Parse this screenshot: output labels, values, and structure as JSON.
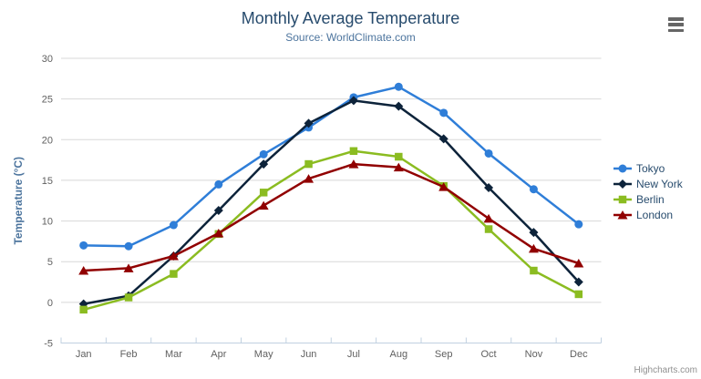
{
  "credits": "Highcharts.com",
  "icons": {
    "export_button": "hamburger-icon"
  },
  "chart_data": {
    "type": "line",
    "title": "Monthly Average Temperature",
    "subtitle": "Source: WorldClimate.com",
    "categories": [
      "Jan",
      "Feb",
      "Mar",
      "Apr",
      "May",
      "Jun",
      "Jul",
      "Aug",
      "Sep",
      "Oct",
      "Nov",
      "Dec"
    ],
    "series": [
      {
        "name": "Tokyo",
        "color": "#2f7ed8",
        "marker": "circle",
        "values": [
          7.0,
          6.9,
          9.5,
          14.5,
          18.2,
          21.5,
          25.2,
          26.5,
          23.3,
          18.3,
          13.9,
          9.6
        ]
      },
      {
        "name": "New York",
        "color": "#0d233a",
        "marker": "diamond",
        "values": [
          -0.2,
          0.8,
          5.7,
          11.3,
          17.0,
          22.0,
          24.8,
          24.1,
          20.1,
          14.1,
          8.6,
          2.5
        ]
      },
      {
        "name": "Berlin",
        "color": "#8bbc21",
        "marker": "square",
        "values": [
          -0.9,
          0.6,
          3.5,
          8.4,
          13.5,
          17.0,
          18.6,
          17.9,
          14.3,
          9.0,
          3.9,
          1.0
        ]
      },
      {
        "name": "London",
        "color": "#910000",
        "marker": "triangle",
        "values": [
          3.9,
          4.2,
          5.7,
          8.5,
          11.9,
          15.2,
          17.0,
          16.6,
          14.2,
          10.3,
          6.6,
          4.8
        ]
      }
    ],
    "xlabel": "",
    "ylabel": "Temperature (°C)",
    "ylim": [
      -5,
      30
    ],
    "ytick_step": 5,
    "grid": "horizontal",
    "legend_position": "right-middle",
    "style": {
      "title_color": "#274b6d",
      "subtitle_color": "#4d759e",
      "axis_title_color": "#4d759e",
      "tick_label_color": "#606060",
      "gridline_color": "#d8d8d8",
      "axis_line_color": "#c0d0e0",
      "legend_text_color": "#274b6d",
      "credits_color": "#909090"
    }
  }
}
